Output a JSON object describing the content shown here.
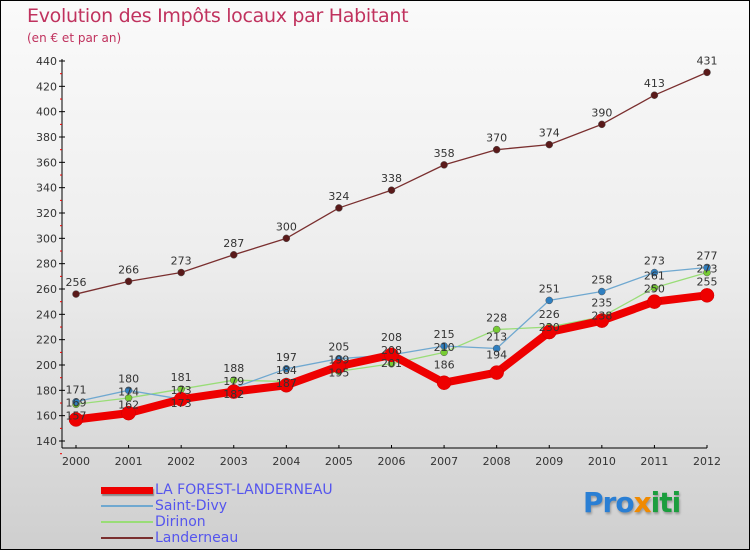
{
  "title": "Evolution des Impôts locaux par Habitant",
  "subtitle": "(en € et par an)",
  "logo": {
    "parts": [
      "Pro",
      "x",
      "iti"
    ],
    "colors": [
      "#2a7fd4",
      "#f08a00",
      "#1b9e3e"
    ]
  },
  "chart_data": {
    "type": "line",
    "title": "Evolution des Impôts locaux par Habitant",
    "ylabel": "(en € et par an)",
    "x": [
      2000,
      2001,
      2002,
      2003,
      2004,
      2005,
      2006,
      2007,
      2008,
      2009,
      2010,
      2011,
      2012
    ],
    "ylim": [
      140,
      440
    ],
    "yticks": [
      140,
      160,
      180,
      200,
      220,
      240,
      260,
      280,
      300,
      320,
      340,
      360,
      380,
      400,
      420,
      440
    ],
    "legend_position": "bottom-left",
    "series": [
      {
        "name": "LA FOREST-LANDERNEAU",
        "color": "#ee0000",
        "values": [
          157,
          162,
          173,
          179,
          184,
          199,
          208,
          186,
          194,
          226,
          235,
          250,
          255
        ]
      },
      {
        "name": "Saint-Divy",
        "color": "#6fa8d0",
        "values": [
          171,
          180,
          173,
          182,
          197,
          205,
          208,
          215,
          213,
          251,
          258,
          273,
          277
        ]
      },
      {
        "name": "Dirinon",
        "color": "#99dd77",
        "values": [
          169,
          174,
          181,
          188,
          187,
          195,
          201,
          210,
          228,
          230,
          238,
          261,
          273
        ]
      },
      {
        "name": "Landerneau",
        "color": "#7a2f2f",
        "values": [
          256,
          266,
          273,
          287,
          300,
          324,
          338,
          358,
          370,
          374,
          390,
          413,
          431
        ]
      }
    ]
  }
}
